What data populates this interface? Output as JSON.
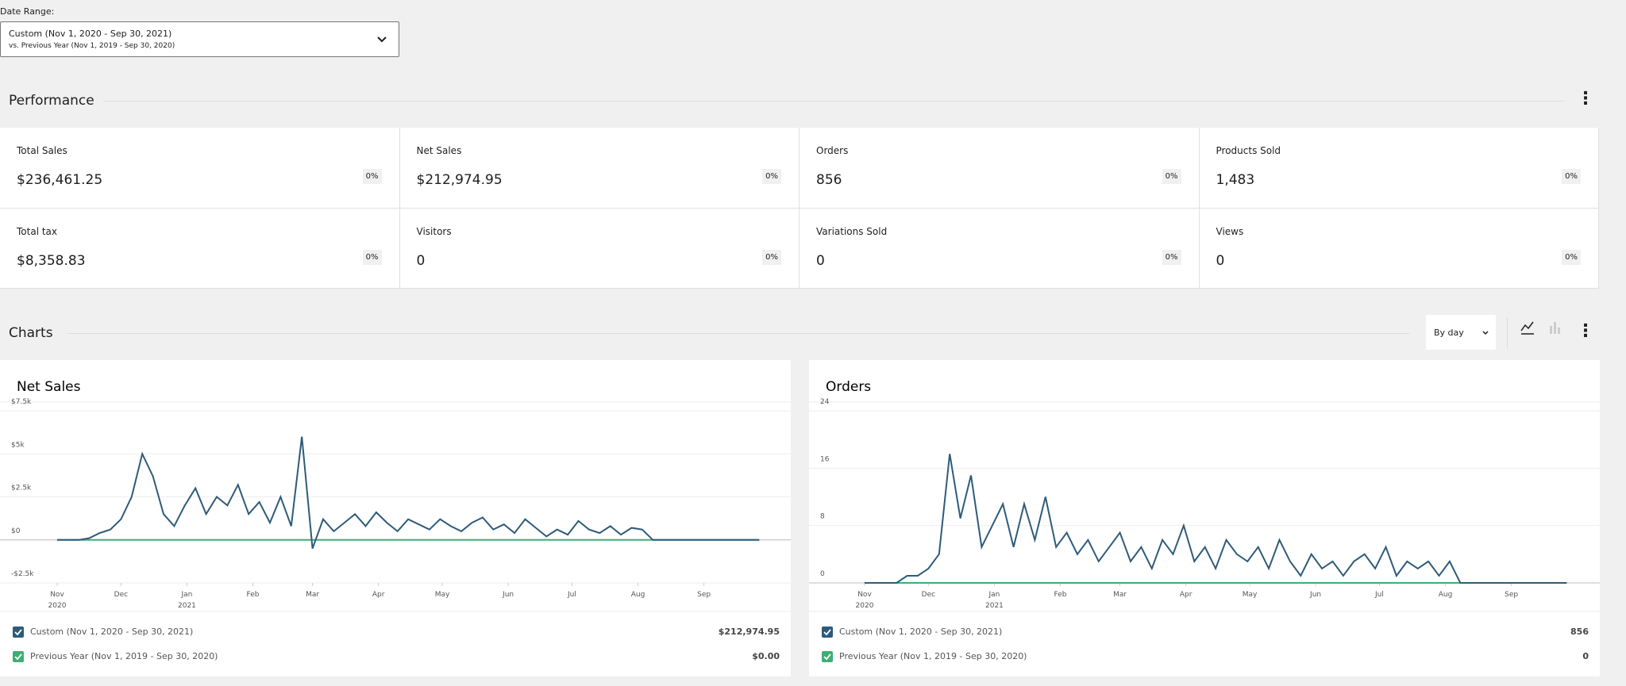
{
  "date_range": {
    "label": "Date Range:",
    "primary": "Custom (Nov 1, 2020 - Sep 30, 2021)",
    "secondary": "vs. Previous Year (Nov 1, 2019 - Sep 30, 2020)"
  },
  "performance": {
    "title": "Performance",
    "tiles": [
      {
        "label": "Total Sales",
        "value": "$236,461.25",
        "change": "0%"
      },
      {
        "label": "Net Sales",
        "value": "$212,974.95",
        "change": "0%"
      },
      {
        "label": "Orders",
        "value": "856",
        "change": "0%"
      },
      {
        "label": "Products Sold",
        "value": "1,483",
        "change": "0%"
      },
      {
        "label": "Total tax",
        "value": "$8,358.83",
        "change": "0%"
      },
      {
        "label": "Visitors",
        "value": "0",
        "change": "0%"
      },
      {
        "label": "Variations Sold",
        "value": "0",
        "change": "0%"
      },
      {
        "label": "Views",
        "value": "0",
        "change": "0%"
      }
    ]
  },
  "charts_section": {
    "title": "Charts",
    "interval": "By day"
  },
  "chart_data": [
    {
      "type": "line",
      "title": "Net Sales",
      "grid": true,
      "x": [
        0,
        5,
        10,
        15,
        20,
        25,
        30,
        35,
        40,
        45,
        50,
        55,
        60,
        65,
        70,
        75,
        80,
        85,
        90,
        95,
        100,
        105,
        110,
        115,
        120,
        125,
        130,
        135,
        140,
        145,
        150,
        155,
        160,
        165,
        170,
        175,
        180,
        185,
        190,
        195,
        200,
        205,
        210,
        215,
        220,
        225,
        230,
        235,
        240,
        245,
        250,
        255,
        260,
        265,
        270,
        275,
        280,
        285,
        290,
        295,
        300,
        305,
        310,
        315,
        320,
        325,
        330
      ],
      "xlim": [
        0,
        334
      ],
      "xticks": [
        {
          "value": 0,
          "label": "Nov",
          "sublabel": "2020"
        },
        {
          "value": 30,
          "label": "Dec"
        },
        {
          "value": 61,
          "label": "Jan",
          "sublabel": "2021"
        },
        {
          "value": 92,
          "label": "Feb"
        },
        {
          "value": 120,
          "label": "Mar"
        },
        {
          "value": 151,
          "label": "Apr"
        },
        {
          "value": 181,
          "label": "May"
        },
        {
          "value": 212,
          "label": "Jun"
        },
        {
          "value": 242,
          "label": "Jul"
        },
        {
          "value": 273,
          "label": "Aug"
        },
        {
          "value": 304,
          "label": "Sep"
        }
      ],
      "ylim": [
        -2500,
        7500
      ],
      "yticks": [
        {
          "value": -2500,
          "label": "-$2.5k"
        },
        {
          "value": 0,
          "label": "$0"
        },
        {
          "value": 2500,
          "label": "$2.5k"
        },
        {
          "value": 5000,
          "label": "$5k"
        },
        {
          "value": 7500,
          "label": "$7.5k"
        }
      ],
      "series": [
        {
          "name": "Custom (Nov 1, 2020 - Sep 30, 2021)",
          "total": "$212,974.95",
          "color": "#2e5b7a",
          "values": [
            0,
            0,
            0,
            100,
            400,
            600,
            1200,
            2500,
            5000,
            3700,
            1500,
            800,
            2000,
            3000,
            1500,
            2500,
            2000,
            3200,
            1500,
            2200,
            1000,
            2500,
            800,
            6000,
            -500,
            1200,
            500,
            1000,
            1500,
            800,
            1600,
            1000,
            500,
            1200,
            900,
            600,
            1200,
            800,
            500,
            1000,
            1300,
            600,
            900,
            400,
            1200,
            700,
            200,
            600,
            300,
            1100,
            600,
            400,
            800,
            300,
            700,
            600,
            0,
            0,
            0,
            0,
            0,
            0,
            0,
            0,
            0,
            0,
            0
          ]
        },
        {
          "name": "Previous Year (Nov 1, 2019 - Sep 30, 2020)",
          "total": "$0.00",
          "color": "#3fae74",
          "values": [
            0,
            0,
            0,
            0,
            0,
            0,
            0,
            0,
            0,
            0,
            0,
            0,
            0,
            0,
            0,
            0,
            0,
            0,
            0,
            0,
            0,
            0,
            0,
            0,
            0,
            0,
            0,
            0,
            0,
            0,
            0,
            0,
            0,
            0,
            0,
            0,
            0,
            0,
            0,
            0,
            0,
            0,
            0,
            0,
            0,
            0,
            0,
            0,
            0,
            0,
            0,
            0,
            0,
            0,
            0,
            0,
            0,
            0,
            0,
            0,
            0,
            0,
            0,
            0,
            0,
            0,
            0
          ]
        }
      ]
    },
    {
      "type": "line",
      "title": "Orders",
      "grid": true,
      "x": [
        0,
        5,
        10,
        15,
        20,
        25,
        30,
        35,
        40,
        45,
        50,
        55,
        60,
        65,
        70,
        75,
        80,
        85,
        90,
        95,
        100,
        105,
        110,
        115,
        120,
        125,
        130,
        135,
        140,
        145,
        150,
        155,
        160,
        165,
        170,
        175,
        180,
        185,
        190,
        195,
        200,
        205,
        210,
        215,
        220,
        225,
        230,
        235,
        240,
        245,
        250,
        255,
        260,
        265,
        270,
        275,
        280,
        285,
        290,
        295,
        300,
        305,
        310,
        315,
        320,
        325,
        330
      ],
      "xlim": [
        0,
        334
      ],
      "xticks": [
        {
          "value": 0,
          "label": "Nov",
          "sublabel": "2020"
        },
        {
          "value": 30,
          "label": "Dec"
        },
        {
          "value": 61,
          "label": "Jan",
          "sublabel": "2021"
        },
        {
          "value": 92,
          "label": "Feb"
        },
        {
          "value": 120,
          "label": "Mar"
        },
        {
          "value": 151,
          "label": "Apr"
        },
        {
          "value": 181,
          "label": "May"
        },
        {
          "value": 212,
          "label": "Jun"
        },
        {
          "value": 242,
          "label": "Jul"
        },
        {
          "value": 273,
          "label": "Aug"
        },
        {
          "value": 304,
          "label": "Sep"
        }
      ],
      "ylim": [
        0,
        24
      ],
      "yticks": [
        0,
        8,
        16,
        24
      ],
      "series": [
        {
          "name": "Custom (Nov 1, 2020 - Sep 30, 2021)",
          "total": "856",
          "color": "#2e5b7a",
          "values": [
            0,
            0,
            0,
            0,
            1,
            1,
            2,
            4,
            18,
            9,
            15,
            5,
            8,
            11,
            5,
            11,
            6,
            12,
            5,
            7,
            4,
            6,
            3,
            5,
            7,
            3,
            5,
            2,
            6,
            4,
            8,
            3,
            5,
            2,
            6,
            4,
            3,
            5,
            2,
            6,
            3,
            1,
            4,
            2,
            3,
            1,
            3,
            4,
            2,
            5,
            1,
            3,
            2,
            3,
            1,
            3,
            0,
            0,
            0,
            0,
            0,
            0,
            0,
            0,
            0,
            0,
            0
          ]
        },
        {
          "name": "Previous Year (Nov 1, 2019 - Sep 30, 2020)",
          "total": "0",
          "color": "#3fae74",
          "values": [
            0,
            0,
            0,
            0,
            0,
            0,
            0,
            0,
            0,
            0,
            0,
            0,
            0,
            0,
            0,
            0,
            0,
            0,
            0,
            0,
            0,
            0,
            0,
            0,
            0,
            0,
            0,
            0,
            0,
            0,
            0,
            0,
            0,
            0,
            0,
            0,
            0,
            0,
            0,
            0,
            0,
            0,
            0,
            0,
            0,
            0,
            0,
            0,
            0,
            0,
            0,
            0,
            0,
            0,
            0,
            0,
            0,
            0,
            0,
            0,
            0,
            0,
            0,
            0,
            0,
            0,
            0
          ]
        }
      ]
    }
  ]
}
